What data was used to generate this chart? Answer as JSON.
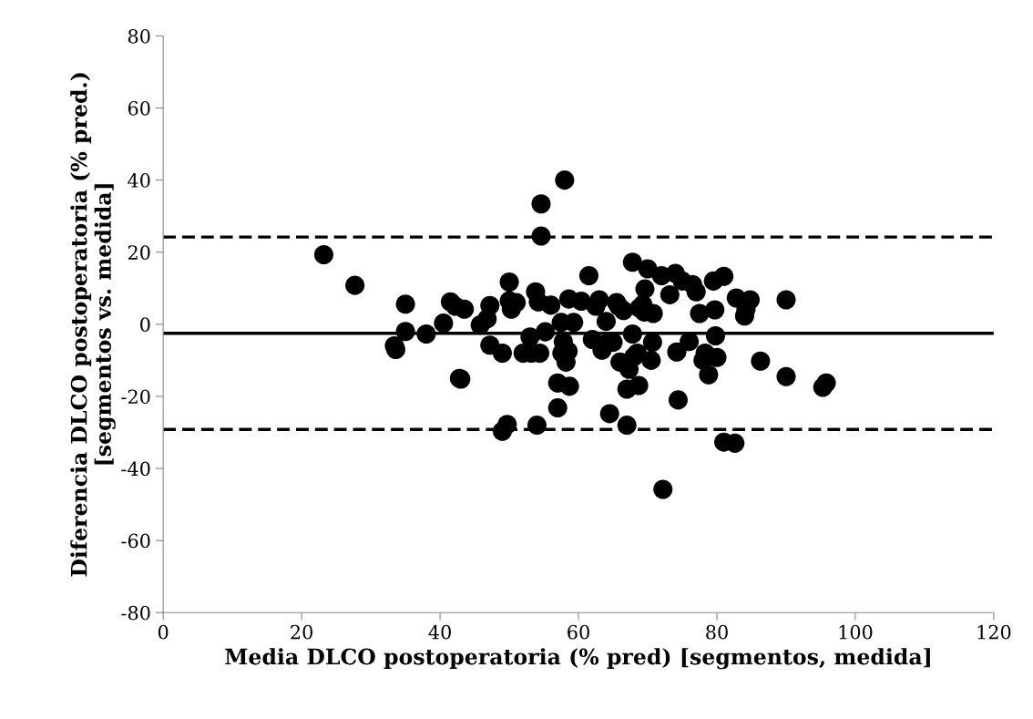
{
  "chart_data": {
    "type": "scatter",
    "xlabel": "Media DLCO postoperatoria (% pred) [segmentos, medida]",
    "ylabel": "Diferencia DLCO postoperatoria (% pred.)\n[segmentos vs. medida]",
    "xlim": [
      0,
      120
    ],
    "xticks": [
      0,
      20,
      40,
      60,
      80,
      100,
      120
    ],
    "ylim": [
      -80,
      80
    ],
    "yticks": [
      -80,
      -60,
      -40,
      -20,
      0,
      20,
      40,
      60,
      80
    ],
    "grid": false,
    "marker": "circle",
    "series": [
      {
        "color": "#000000",
        "x": [
          23.2,
          27.7,
          33.4,
          33.6,
          35,
          35,
          38,
          40.5,
          41.5,
          42.2,
          42.8,
          43,
          43.5,
          45.8,
          46.8,
          47.2,
          47.2,
          49,
          49,
          49.7,
          50,
          50,
          50.3,
          51,
          52,
          53,
          53.2,
          53.8,
          54,
          54.2,
          54.4,
          54.6,
          54.6,
          55.2,
          56,
          57,
          57,
          57.5,
          57.6,
          57.8,
          58,
          58.2,
          58.5,
          58.6,
          58.7,
          59.3,
          60.4,
          61.5,
          62,
          62.5,
          63,
          63.4,
          64,
          64.3,
          64.5,
          65,
          65.5,
          65.8,
          66,
          66.5,
          67,
          67,
          67.3,
          67.8,
          67.8,
          68,
          68.5,
          68.7,
          68.8,
          69.3,
          69.5,
          69.6,
          70,
          70.5,
          70.7,
          70.8,
          72,
          72.2,
          73.2,
          74,
          74.2,
          74.4,
          75,
          76,
          76.5,
          77,
          77.5,
          78,
          78.3,
          78.8,
          79.5,
          79.7,
          79.8,
          80,
          81,
          81,
          82.6,
          82.8,
          84,
          84.2,
          84.8,
          86.3,
          90,
          90,
          95.3,
          95.8
        ],
        "values": [
          19.3,
          10.8,
          -6,
          -7,
          5.6,
          -2,
          -2.7,
          0.3,
          6.2,
          5,
          -15,
          -15.2,
          4.2,
          -0.2,
          1.5,
          5.2,
          -5.8,
          -8,
          -29.7,
          -27.8,
          11.7,
          6.5,
          4.2,
          6,
          -8,
          -3.5,
          -8,
          9,
          -28,
          6.2,
          -8,
          33.4,
          24.5,
          -2.1,
          5.3,
          -16.3,
          -23.2,
          0.5,
          -8,
          -4.8,
          40,
          -10.5,
          -7.5,
          7,
          -17.2,
          0.5,
          6.4,
          13.5,
          -4.2,
          5,
          6.8,
          -7.2,
          0.8,
          -5,
          -24.8,
          -5,
          6,
          5,
          -10.5,
          3.8,
          -28,
          -18,
          -12.5,
          17.2,
          -2.7,
          -9,
          -8,
          -17,
          4.5,
          5.5,
          3.4,
          9.8,
          15.4,
          -10,
          -5,
          3,
          13.5,
          -45.8,
          8.2,
          14.1,
          -7.7,
          -21,
          12,
          -4.8,
          11,
          9,
          3,
          -10,
          -8,
          -14,
          12,
          4,
          -3.2,
          -9.2,
          13.3,
          -32.7,
          -33,
          7.3,
          2.3,
          4.2,
          6.8,
          -10.2,
          6.8,
          -14.5,
          -17.5,
          -16.3
        ]
      }
    ],
    "ref_lines": [
      {
        "axis": "y",
        "value": -2.5,
        "color": "#000000",
        "line_style": "solid"
      },
      {
        "axis": "y",
        "value": 24.2,
        "color": "#000000",
        "line_style": "dashed"
      },
      {
        "axis": "y",
        "value": -29.2,
        "color": "#000000",
        "line_style": "dashed"
      }
    ]
  }
}
